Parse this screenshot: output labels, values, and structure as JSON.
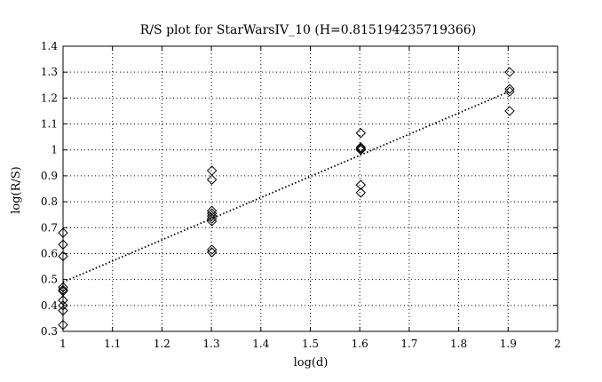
{
  "chart_data": {
    "type": "scatter",
    "title": "R/S plot for StarWarsIV_10 (H=0.815194235719366)",
    "xlabel": "log(d)",
    "ylabel": "log(R/S)",
    "xlim": [
      1,
      2
    ],
    "ylim": [
      0.3,
      1.4
    ],
    "xticks": [
      "1",
      "1.1",
      "1.2",
      "1.3",
      "1.4",
      "1.5",
      "1.6",
      "1.7",
      "1.8",
      "1.9",
      "2"
    ],
    "yticks": [
      "0.3",
      "0.4",
      "0.5",
      "0.6",
      "0.7",
      "0.8",
      "0.9",
      "1",
      "1.1",
      "1.2",
      "1.3",
      "1.4"
    ],
    "grid": true,
    "series": [
      {
        "marker": "diamond",
        "x": [
          1,
          1,
          1,
          1,
          1,
          1,
          1,
          1,
          1,
          1,
          1.301,
          1.301,
          1.301,
          1.301,
          1.301,
          1.301,
          1.301,
          1.301,
          1.301,
          1.602,
          1.602,
          1.602,
          1.602,
          1.602,
          1.602,
          1.903,
          1.903,
          1.903,
          1.903
        ],
        "y": [
          0.68,
          0.635,
          0.59,
          0.47,
          0.46,
          0.455,
          0.42,
          0.4,
          0.38,
          0.325,
          0.92,
          0.885,
          0.765,
          0.755,
          0.745,
          0.735,
          0.725,
          0.615,
          0.605,
          1.065,
          1.01,
          1.005,
          1.0,
          0.865,
          0.835,
          1.3,
          1.235,
          1.225,
          1.15
        ]
      },
      {
        "type": "line",
        "style": "dotted",
        "x": [
          1,
          1.903
        ],
        "y": [
          0.49,
          1.226
        ]
      }
    ]
  }
}
